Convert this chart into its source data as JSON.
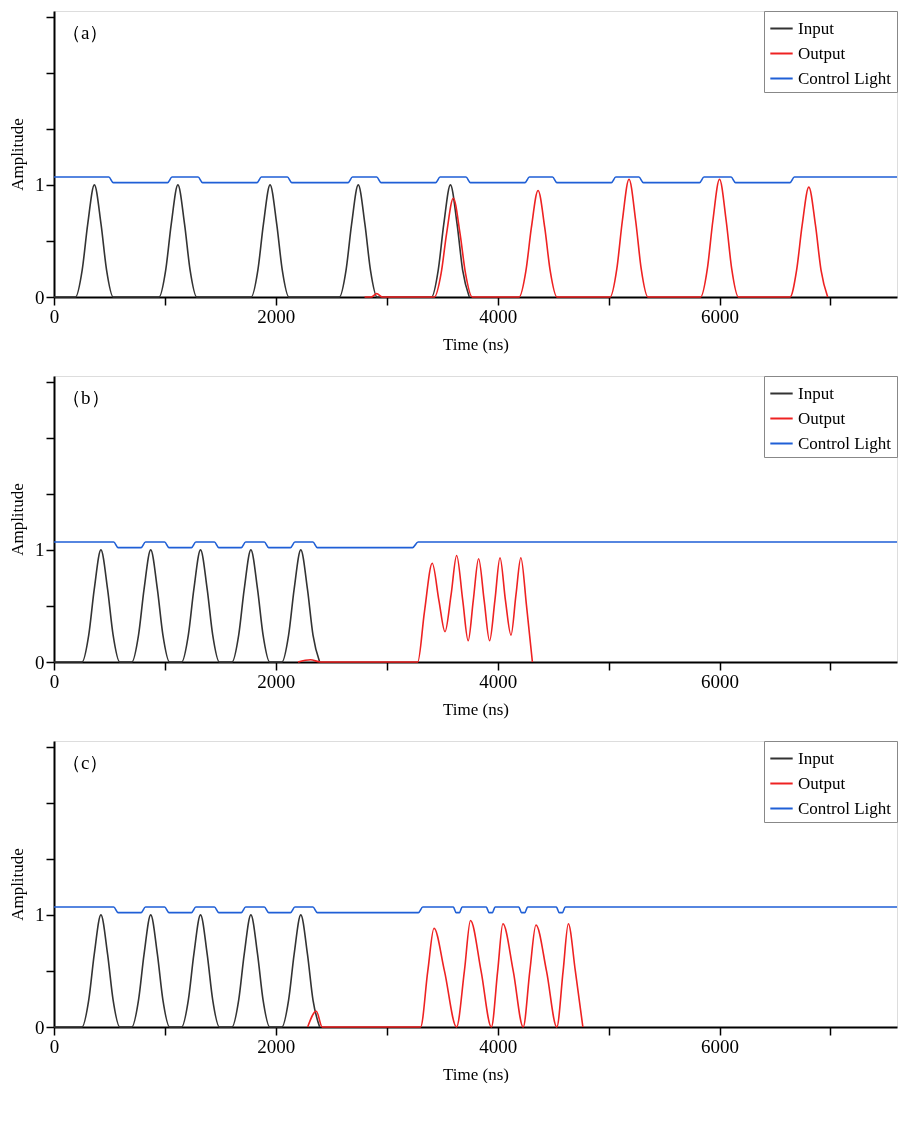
{
  "chart_data": [
    {
      "type": "line",
      "xlabel": "Time (ns)",
      "ylabel": "Amplitude",
      "annotations": [
        "（a）"
      ],
      "xlim": [
        0,
        7600
      ],
      "xticks": [
        0,
        {
          "value": 1000,
          "label": null
        },
        2000,
        {
          "value": 3000,
          "label": null
        },
        4000,
        {
          "value": 5000,
          "label": null
        },
        6000,
        {
          "value": 7000,
          "label": null
        }
      ],
      "ylim": [
        0,
        2.55
      ],
      "yticks": [
        0,
        {
          "value": 0.5,
          "label": null
        },
        1,
        {
          "value": 1.5,
          "label": null
        },
        {
          "value": 2,
          "label": null
        },
        {
          "value": 2.5,
          "label": null
        }
      ],
      "grid": false,
      "legend": "top right",
      "line_style": "solid",
      "series": [
        {
          "name": "Input",
          "color": "#333333",
          "x": [
            0,
            194,
            254,
            304,
            364,
            424,
            474,
            534,
            947,
            1007,
            1057,
            1117,
            1177,
            1227,
            1287,
            1778,
            1838,
            1888,
            1948,
            2008,
            2058,
            2118,
            2573,
            2633,
            2683,
            2743,
            2803,
            2853,
            2913,
            3404,
            3464,
            3514,
            3574,
            3634,
            3684,
            3744
          ],
          "values": [
            0,
            0,
            0.24,
            0.65,
            1,
            0.65,
            0.24,
            0,
            0,
            0.24,
            0.65,
            1,
            0.65,
            0.24,
            0,
            0,
            0.24,
            0.65,
            1,
            0.65,
            0.24,
            0,
            0,
            0.24,
            0.65,
            1,
            0.65,
            0.24,
            0,
            0,
            0.24,
            0.65,
            1,
            0.65,
            0.24,
            0
          ]
        },
        {
          "name": "Output",
          "color": "#ee2222",
          "x": [
            2800,
            2860,
            2909,
            2960,
            3430,
            3490,
            3540,
            3600,
            3660,
            3710,
            3770,
            4194,
            4254,
            4304,
            4364,
            4424,
            4474,
            4534,
            5014,
            5074,
            5124,
            5184,
            5244,
            5294,
            5354,
            5830,
            5890,
            5940,
            6000,
            6060,
            6110,
            6170,
            6635,
            6695,
            6745,
            6805,
            6865,
            6915,
            6975
          ],
          "values": [
            0,
            0,
            0.03,
            0,
            0,
            0.21,
            0.57,
            0.88,
            0.57,
            0.21,
            0,
            0,
            0.23,
            0.62,
            0.95,
            0.62,
            0.23,
            0,
            0,
            0.25,
            0.68,
            1.05,
            0.68,
            0.25,
            0,
            0,
            0.25,
            0.68,
            1.05,
            0.68,
            0.25,
            0,
            0,
            0.24,
            0.64,
            0.98,
            0.64,
            0.24,
            0
          ]
        },
        {
          "name": "Control Light",
          "color": "#1f5fd6",
          "x": [
            0,
            494,
            534,
            1024,
            1064,
            1299,
            1339,
            1830,
            1870,
            2104,
            2144,
            2651,
            2691,
            2909,
            2949,
            3441,
            3481,
            3714,
            3754,
            4246,
            4286,
            4494,
            4534,
            5025,
            5065,
            5273,
            5313,
            5820,
            5860,
            6104,
            6144,
            6635,
            6675,
            7600
          ],
          "values": [
            1.07,
            1.07,
            1.02,
            1.02,
            1.07,
            1.07,
            1.02,
            1.02,
            1.07,
            1.07,
            1.02,
            1.02,
            1.07,
            1.07,
            1.02,
            1.02,
            1.07,
            1.07,
            1.02,
            1.02,
            1.07,
            1.07,
            1.02,
            1.02,
            1.07,
            1.07,
            1.02,
            1.02,
            1.07,
            1.07,
            1.02,
            1.02,
            1.07,
            1.07
          ]
        }
      ]
    },
    {
      "type": "line",
      "xlabel": "Time (ns)",
      "ylabel": "Amplitude",
      "annotations": [
        "（b）"
      ],
      "xlim": [
        0,
        7600
      ],
      "xticks": [
        0,
        {
          "value": 1000,
          "label": null
        },
        2000,
        {
          "value": 3000,
          "label": null
        },
        4000,
        {
          "value": 5000,
          "label": null
        },
        6000,
        {
          "value": 7000,
          "label": null
        }
      ],
      "ylim": [
        0,
        2.55
      ],
      "yticks": [
        0,
        {
          "value": 0.5,
          "label": null
        },
        1,
        {
          "value": 1.5,
          "label": null
        },
        {
          "value": 2,
          "label": null
        },
        {
          "value": 2.5,
          "label": null
        }
      ],
      "grid": false,
      "legend": "top right",
      "line_style": "solid",
      "series": [
        {
          "name": "Input",
          "color": "#333333",
          "x": [
            0,
            253,
            313,
            363,
            423,
            483,
            533,
            593,
            702,
            762,
            812,
            872,
            932,
            982,
            1042,
            1151,
            1211,
            1261,
            1321,
            1381,
            1431,
            1491,
            1605,
            1665,
            1715,
            1775,
            1835,
            1885,
            1945,
            2055,
            2115,
            2165,
            2225,
            2285,
            2335,
            2395
          ],
          "values": [
            0,
            0,
            0.24,
            0.65,
            1,
            0.65,
            0.24,
            0,
            0,
            0.24,
            0.65,
            1,
            0.65,
            0.24,
            0,
            0,
            0.24,
            0.65,
            1,
            0.65,
            0.24,
            0,
            0,
            0.24,
            0.65,
            1,
            0.65,
            0.24,
            0,
            0,
            0.24,
            0.65,
            1,
            0.65,
            0.24,
            0
          ]
        },
        {
          "name": "Output",
          "color": "#ee2222",
          "x": [
            2200,
            2313,
            2400,
            3279,
            3340,
            3410,
            3470,
            3525,
            3580,
            3630,
            3685,
            3734,
            3780,
            3828,
            3878,
            3927,
            3975,
            4021,
            4070,
            4120,
            4165,
            4209,
            4260,
            4313
          ],
          "values": [
            0,
            0.02,
            0,
            0,
            0.45,
            0.88,
            0.55,
            0.27,
            0.6,
            0.95,
            0.55,
            0.19,
            0.55,
            0.92,
            0.55,
            0.19,
            0.55,
            0.93,
            0.55,
            0.24,
            0.6,
            0.93,
            0.5,
            0
          ]
        },
        {
          "name": "Control Light",
          "color": "#1f5fd6",
          "x": [
            0,
            538,
            578,
            785,
            825,
            997,
            1037,
            1239,
            1279,
            1446,
            1486,
            1688,
            1728,
            1896,
            1936,
            2132,
            2172,
            2334,
            2374,
            3233,
            3283,
            7600
          ],
          "values": [
            1.07,
            1.07,
            1.02,
            1.02,
            1.07,
            1.07,
            1.02,
            1.02,
            1.07,
            1.07,
            1.02,
            1.02,
            1.07,
            1.07,
            1.02,
            1.02,
            1.07,
            1.07,
            1.02,
            1.02,
            1.07,
            1.07
          ]
        }
      ]
    },
    {
      "type": "line",
      "xlabel": "Time (ns)",
      "ylabel": "Amplitude",
      "annotations": [
        "（c）"
      ],
      "xlim": [
        0,
        7600
      ],
      "xticks": [
        0,
        {
          "value": 1000,
          "label": null
        },
        2000,
        {
          "value": 3000,
          "label": null
        },
        4000,
        {
          "value": 5000,
          "label": null
        },
        6000,
        {
          "value": 7000,
          "label": null
        }
      ],
      "ylim": [
        0,
        2.55
      ],
      "yticks": [
        0,
        {
          "value": 0.5,
          "label": null
        },
        1,
        {
          "value": 1.5,
          "label": null
        },
        {
          "value": 2,
          "label": null
        },
        {
          "value": 2.5,
          "label": null
        }
      ],
      "grid": false,
      "legend": "top right",
      "line_style": "solid",
      "series": [
        {
          "name": "Input",
          "color": "#333333",
          "x": [
            0,
            253,
            313,
            363,
            423,
            483,
            533,
            593,
            702,
            762,
            812,
            872,
            932,
            982,
            1042,
            1151,
            1211,
            1261,
            1321,
            1381,
            1431,
            1491,
            1605,
            1665,
            1715,
            1775,
            1835,
            1885,
            1945,
            2055,
            2115,
            2165,
            2225,
            2285,
            2335,
            2395
          ],
          "values": [
            0,
            0,
            0.24,
            0.65,
            1,
            0.65,
            0.24,
            0,
            0,
            0.24,
            0.65,
            1,
            0.65,
            0.24,
            0,
            0,
            0.24,
            0.65,
            1,
            0.65,
            0.24,
            0,
            0,
            0.24,
            0.65,
            1,
            0.65,
            0.24,
            0,
            0,
            0.24,
            0.65,
            1,
            0.65,
            0.24,
            0
          ]
        },
        {
          "name": "Output",
          "color": "#ee2222",
          "x": [
            2287,
            2365,
            2418,
            3305,
            3370,
            3426,
            3520,
            3629,
            3700,
            3755,
            3850,
            3943,
            4000,
            4047,
            4140,
            4230,
            4290,
            4345,
            4440,
            4533,
            4590,
            4637,
            4700,
            4768
          ],
          "values": [
            0,
            0.14,
            0,
            0,
            0.5,
            0.88,
            0.5,
            0,
            0.5,
            0.95,
            0.5,
            0,
            0.5,
            0.92,
            0.5,
            0,
            0.5,
            0.91,
            0.5,
            0,
            0.5,
            0.92,
            0.5,
            0
          ]
        },
        {
          "name": "Control Light",
          "color": "#1f5fd6",
          "x": [
            0,
            538,
            578,
            785,
            825,
            997,
            1037,
            1239,
            1279,
            1446,
            1486,
            1688,
            1728,
            1896,
            1936,
            2132,
            2172,
            2334,
            2374,
            3285,
            3325,
            3600,
            3625,
            3655,
            3680,
            3897,
            3922,
            3952,
            3977,
            4190,
            4215,
            4245,
            4270,
            4529,
            4554,
            4584,
            4609,
            7600
          ],
          "values": [
            1.07,
            1.07,
            1.02,
            1.02,
            1.07,
            1.07,
            1.02,
            1.02,
            1.07,
            1.07,
            1.02,
            1.02,
            1.07,
            1.07,
            1.02,
            1.02,
            1.07,
            1.07,
            1.02,
            1.02,
            1.07,
            1.07,
            1.02,
            1.02,
            1.07,
            1.07,
            1.02,
            1.02,
            1.07,
            1.07,
            1.02,
            1.02,
            1.07,
            1.07,
            1.02,
            1.02,
            1.07,
            1.07
          ]
        }
      ]
    }
  ]
}
